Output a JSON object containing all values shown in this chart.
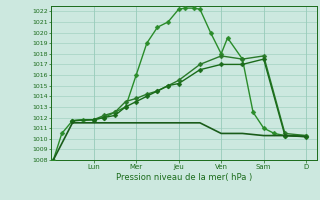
{
  "background_color": "#cce8df",
  "grid_color": "#99ccbb",
  "line_color": "#1a6b1a",
  "xlabel_text": "Pression niveau de la mer( hPa )",
  "ylim": [
    1008,
    1022.5
  ],
  "yticks": [
    1008,
    1009,
    1010,
    1011,
    1012,
    1013,
    1014,
    1015,
    1016,
    1017,
    1018,
    1019,
    1020,
    1021,
    1022
  ],
  "day_labels": [
    "Lun",
    "Mer",
    "Jeu",
    "Ven",
    "Sam",
    "D"
  ],
  "day_positions": [
    2,
    4,
    6,
    8,
    10,
    12
  ],
  "xlim": [
    0,
    12.5
  ],
  "series": [
    {
      "x": [
        0.1,
        0.5,
        1.0,
        1.5,
        2.0,
        2.5,
        3.0,
        3.5,
        4.0,
        4.5,
        5.0,
        5.5,
        6.0,
        6.3,
        6.7,
        7.0,
        7.5,
        8.0,
        8.3,
        9.0,
        9.5,
        10.0,
        10.5,
        11.0,
        12.0
      ],
      "y": [
        1008,
        1010.5,
        1011.7,
        1011.8,
        1011.8,
        1012.0,
        1012.5,
        1013.0,
        1016.0,
        1019.0,
        1020.5,
        1021.0,
        1022.2,
        1022.3,
        1022.3,
        1022.2,
        1020.0,
        1018.0,
        1019.5,
        1017.5,
        1012.5,
        1011.0,
        1010.5,
        1010.3,
        1010.3
      ],
      "marker": "D",
      "markersize": 2.5,
      "linewidth": 1.0,
      "color": "#2a8c2a"
    },
    {
      "x": [
        1.0,
        2.0,
        2.5,
        3.0,
        3.5,
        4.0,
        4.5,
        5.0,
        5.5,
        6.0,
        7.0,
        8.0,
        9.0,
        10.0,
        11.0,
        12.0
      ],
      "y": [
        1011.7,
        1011.8,
        1012.2,
        1012.5,
        1013.5,
        1013.8,
        1014.2,
        1014.5,
        1015.0,
        1015.5,
        1017.0,
        1017.8,
        1017.5,
        1017.8,
        1010.5,
        1010.3
      ],
      "marker": "D",
      "markersize": 2.5,
      "linewidth": 1.0,
      "color": "#2a7a2a"
    },
    {
      "x": [
        1.0,
        2.0,
        2.5,
        3.0,
        3.5,
        4.0,
        4.5,
        5.0,
        5.5,
        6.0,
        7.0,
        8.0,
        9.0,
        10.0,
        11.0,
        12.0
      ],
      "y": [
        1011.7,
        1011.8,
        1012.0,
        1012.2,
        1013.0,
        1013.5,
        1014.0,
        1014.5,
        1015.0,
        1015.2,
        1016.5,
        1017.0,
        1017.0,
        1017.5,
        1010.3,
        1010.2
      ],
      "marker": "D",
      "markersize": 2.5,
      "linewidth": 1.0,
      "color": "#1a6b1a"
    },
    {
      "x": [
        0.1,
        1.0,
        2.0,
        3.0,
        4.0,
        5.0,
        6.0,
        7.0,
        8.0,
        9.0,
        10.0,
        11.0,
        12.0
      ],
      "y": [
        1008,
        1011.5,
        1011.5,
        1011.5,
        1011.5,
        1011.5,
        1011.5,
        1011.5,
        1010.5,
        1010.5,
        1010.3,
        1010.3,
        1010.2
      ],
      "marker": null,
      "markersize": 0,
      "linewidth": 1.2,
      "color": "#1a5c1a"
    }
  ]
}
